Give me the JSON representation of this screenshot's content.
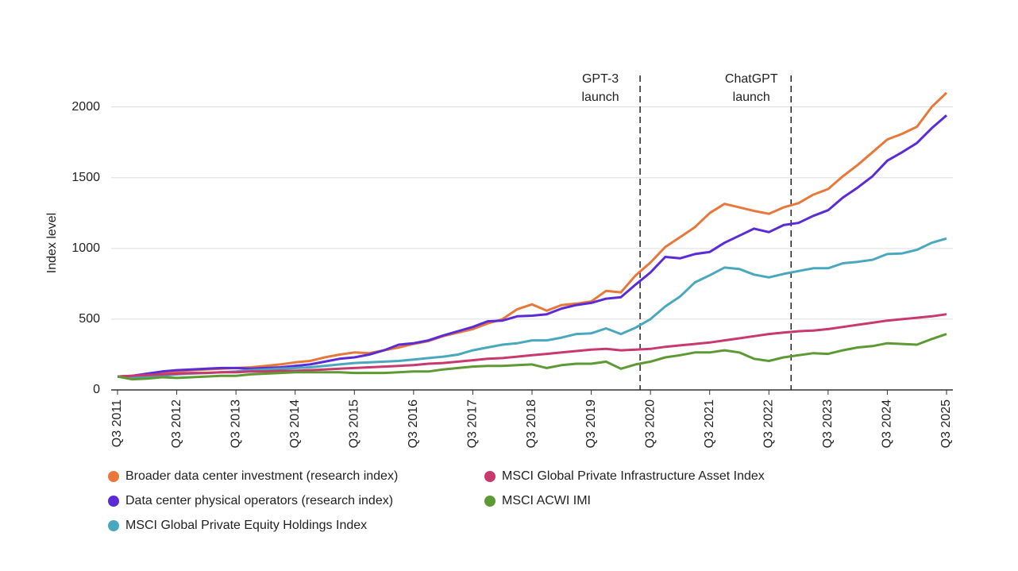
{
  "chart_data": {
    "type": "line",
    "y_label": "Index level",
    "categories": [
      "Q3 2011",
      null,
      null,
      null,
      "Q3 2012",
      null,
      null,
      null,
      "Q3 2013",
      null,
      null,
      null,
      "Q3 2014",
      null,
      null,
      null,
      "Q3 2015",
      null,
      null,
      null,
      "Q3 2016",
      null,
      null,
      null,
      "Q3 2017",
      null,
      null,
      null,
      "Q3 2018",
      null,
      null,
      null,
      "Q3 2019",
      null,
      null,
      null,
      "Q3 2020",
      null,
      null,
      null,
      "Q3 2021",
      null,
      null,
      null,
      "Q3 2022",
      null,
      null,
      null,
      "Q3 2023",
      null,
      null,
      null,
      "Q3 2024",
      null,
      null,
      null,
      "Q3 2025"
    ],
    "series": [
      {
        "name": "Broader data center investment (research index)",
        "color": "#e8773a",
        "values": [
          95,
          100,
          110,
          120,
          130,
          140,
          145,
          150,
          155,
          160,
          170,
          180,
          195,
          205,
          230,
          250,
          265,
          260,
          280,
          300,
          325,
          345,
          380,
          405,
          430,
          470,
          500,
          570,
          605,
          560,
          600,
          610,
          625,
          700,
          690,
          810,
          900,
          1010,
          1080,
          1150,
          1250,
          1315,
          1290,
          1265,
          1245,
          1290,
          1320,
          1380,
          1420,
          1510,
          1590,
          1680,
          1770,
          1810,
          1860,
          2000,
          2100
        ]
      },
      {
        "name": "Data center physical operators (research index)",
        "color": "#5a2bd6",
        "values": [
          95,
          100,
          115,
          130,
          140,
          145,
          150,
          155,
          155,
          150,
          155,
          160,
          170,
          180,
          200,
          220,
          230,
          250,
          280,
          320,
          330,
          350,
          385,
          415,
          445,
          485,
          490,
          520,
          525,
          535,
          575,
          600,
          615,
          645,
          655,
          745,
          830,
          940,
          930,
          960,
          975,
          1040,
          1090,
          1140,
          1115,
          1165,
          1180,
          1230,
          1270,
          1360,
          1430,
          1510,
          1620,
          1680,
          1745,
          1850,
          1940
        ]
      },
      {
        "name": "MSCI Global Private Equity Holdings Index",
        "color": "#4aa8be",
        "values": [
          95,
          85,
          95,
          100,
          110,
          115,
          120,
          125,
          130,
          140,
          145,
          150,
          155,
          160,
          170,
          180,
          190,
          195,
          200,
          205,
          215,
          225,
          235,
          250,
          280,
          300,
          320,
          330,
          350,
          350,
          370,
          395,
          400,
          435,
          395,
          440,
          500,
          590,
          660,
          760,
          810,
          865,
          855,
          815,
          795,
          820,
          840,
          860,
          860,
          895,
          905,
          920,
          960,
          965,
          990,
          1040,
          1070
        ]
      },
      {
        "name": "MSCI Global Private Infrastructure Asset Index",
        "color": "#c8396e",
        "values": [
          95,
          100,
          105,
          110,
          115,
          120,
          120,
          125,
          125,
          130,
          130,
          135,
          135,
          140,
          145,
          150,
          155,
          160,
          165,
          170,
          175,
          185,
          190,
          200,
          210,
          220,
          225,
          235,
          245,
          255,
          265,
          275,
          285,
          290,
          280,
          285,
          290,
          305,
          315,
          325,
          335,
          350,
          365,
          380,
          395,
          405,
          415,
          420,
          430,
          445,
          460,
          475,
          490,
          500,
          510,
          520,
          535
        ]
      },
      {
        "name": "MSCI ACWI IMI",
        "color": "#5e9a34",
        "values": [
          95,
          75,
          80,
          90,
          85,
          90,
          95,
          100,
          100,
          110,
          115,
          120,
          125,
          125,
          125,
          125,
          120,
          120,
          120,
          125,
          130,
          130,
          145,
          155,
          165,
          170,
          170,
          175,
          180,
          155,
          175,
          185,
          185,
          200,
          150,
          180,
          200,
          230,
          245,
          265,
          265,
          280,
          265,
          220,
          205,
          230,
          245,
          260,
          255,
          280,
          300,
          310,
          330,
          325,
          320,
          360,
          395
        ]
      }
    ],
    "ylim": [
      0,
      2200
    ],
    "yticks": [
      0,
      500,
      1000,
      1500,
      2000
    ],
    "grid": true,
    "annotations": [
      {
        "text": [
          "GPT-3",
          "launch"
        ],
        "x": 35.3
      },
      {
        "text": [
          "ChatGPT",
          "launch"
        ],
        "x": 45.5
      }
    ]
  }
}
